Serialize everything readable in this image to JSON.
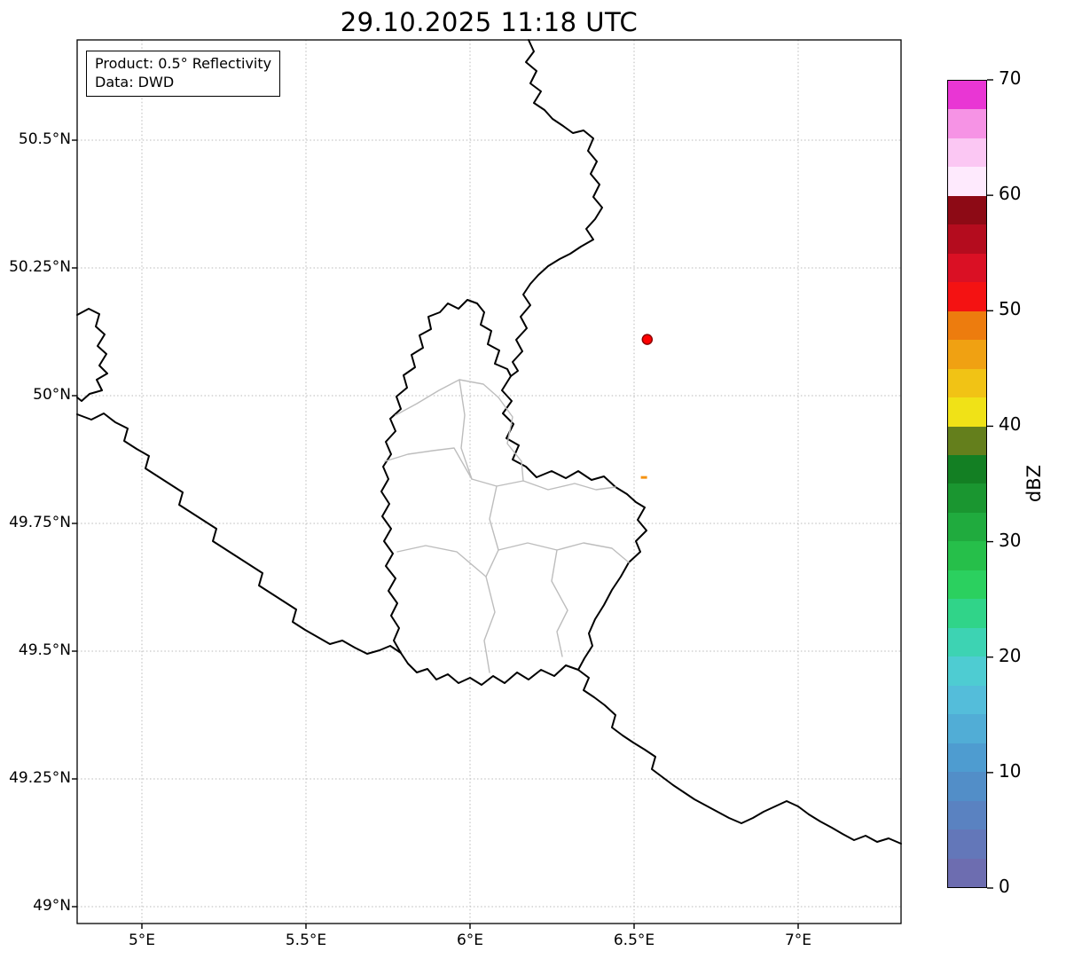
{
  "title": "29.10.2025 11:18 UTC",
  "info_box": {
    "line1": "Product: 0.5° Reflectivity",
    "line2": "Data: DWD"
  },
  "map": {
    "x_axis": {
      "ticks": [
        {
          "value": 5.0,
          "label": "5°E"
        },
        {
          "value": 5.5,
          "label": "5.5°E"
        },
        {
          "value": 6.0,
          "label": "6°E"
        },
        {
          "value": 6.5,
          "label": "6.5°E"
        },
        {
          "value": 7.0,
          "label": "7°E"
        }
      ]
    },
    "y_axis": {
      "ticks": [
        {
          "value": 50.5,
          "label": "50.5°N"
        },
        {
          "value": 50.25,
          "label": "50.25°N"
        },
        {
          "value": 50.0,
          "label": "50°N"
        },
        {
          "value": 49.75,
          "label": "49.75°N"
        },
        {
          "value": 49.5,
          "label": "49.5°N"
        },
        {
          "value": 49.25,
          "label": "49.25°N"
        },
        {
          "value": 49.0,
          "label": "49°N"
        }
      ]
    },
    "markers": [
      {
        "name": "radar-site-marker",
        "shape": "circle",
        "lon": 6.54,
        "lat": 50.11,
        "radius": 5.5,
        "fill": "#ff0000",
        "edge": "#8b0000"
      },
      {
        "name": "reflectivity-echo",
        "shape": "dash",
        "lon": 6.53,
        "lat": 49.84,
        "width": 7,
        "height": 3,
        "fill": "#f59311"
      }
    ]
  },
  "colorbar": {
    "label": "dBZ",
    "min": 0,
    "max": 70,
    "ticks": [
      0,
      10,
      20,
      30,
      40,
      50,
      60,
      70
    ],
    "colors_bottom_to_top": [
      "#6d6db0",
      "#6377b9",
      "#5a82c1",
      "#528ec8",
      "#4e9cd0",
      "#51add6",
      "#54bdda",
      "#4eccd2",
      "#3dd3b3",
      "#30d489",
      "#2bd05f",
      "#26bf4a",
      "#20ab3e",
      "#1a9630",
      "#137f23",
      "#647f1c",
      "#f0e217",
      "#f1c315",
      "#f0a112",
      "#ed7c0e",
      "#f41212",
      "#da1024",
      "#b40c1e",
      "#8d0a15",
      "#feeafd",
      "#fbc7f3",
      "#f693e5",
      "#e936d4"
    ]
  },
  "chart_data": {
    "type": "map",
    "title": "29.10.2025 11:18 UTC",
    "product": "0.5° Reflectivity",
    "data_source": "DWD",
    "x_axis": {
      "ticks": [
        "5°E",
        "5.5°E",
        "6°E",
        "6.5°E",
        "7°E"
      ],
      "range_deg_east": [
        4.8,
        7.31
      ]
    },
    "y_axis": {
      "ticks": [
        "50.5°N",
        "50.25°N",
        "50°N",
        "49.75°N",
        "49.5°N",
        "49.25°N",
        "49°N"
      ],
      "range_deg_north": [
        48.97,
        50.7
      ]
    },
    "colorbar": {
      "label": "dBZ",
      "range": [
        0,
        70
      ],
      "ticks": [
        0,
        10,
        20,
        30,
        40,
        50,
        60,
        70
      ]
    },
    "points": [
      {
        "type": "radar-site-marker",
        "lon": 6.54,
        "lat": 50.11,
        "color": "#ff0000"
      },
      {
        "type": "reflectivity-echo",
        "lon": 6.53,
        "lat": 49.84,
        "approx_dbz": 45,
        "color": "#f59311"
      }
    ]
  }
}
